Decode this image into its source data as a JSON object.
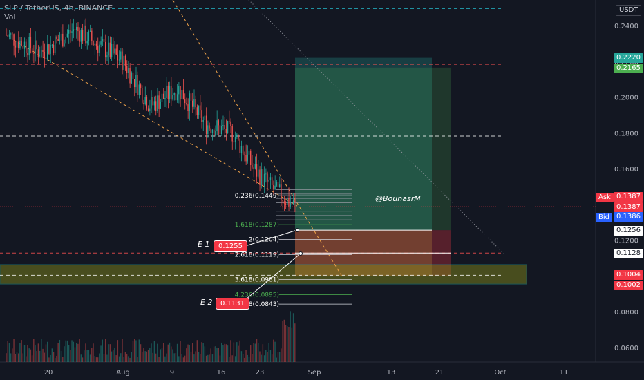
{
  "header": {
    "symbol": "SLP / TetherUS, 4h, BINANCE",
    "volume_label": "Vol"
  },
  "currency": "USDT",
  "watermark": "@BounasrM",
  "entries": [
    {
      "label": "E 1",
      "price": "0.1255"
    },
    {
      "label": "E 2",
      "price": "0.1131"
    }
  ],
  "ask_label": "Ask",
  "bid_label": "Bid",
  "price_tags": [
    {
      "text": "0.2220",
      "color": "#26a69a"
    },
    {
      "text": "0.2165",
      "color": "#4caf50"
    },
    {
      "text": "0.1387",
      "color": "#f23645"
    },
    {
      "text": "0.1387",
      "color": "#f23645"
    },
    {
      "text": "0.1386",
      "color": "#2962ff"
    },
    {
      "text": "0.1256",
      "color": "#ffffff"
    },
    {
      "text": "0.1128",
      "color": "#ffffff"
    },
    {
      "text": "0.1004",
      "color": "#f23645"
    },
    {
      "text": "0.1002",
      "color": "#f23645"
    }
  ],
  "fib_labels": [
    {
      "text": "0.236(0.1449)",
      "value": 0.1449,
      "color": "#ffffff"
    },
    {
      "text": "1.618(0.1287)",
      "value": 0.1287,
      "color": "#4caf50"
    },
    {
      "text": "2(0.1204)",
      "value": 0.1204,
      "color": "#ffffff"
    },
    {
      "text": "2.618(0.1119)",
      "value": 0.1119,
      "color": "#ffffff"
    },
    {
      "text": "3.618(0.0981)",
      "value": 0.0981,
      "color": "#ffffff"
    },
    {
      "text": "4.236(0.0895)",
      "value": 0.0895,
      "color": "#4caf50"
    },
    {
      "text": "4.618(0.0843)",
      "value": 0.0843,
      "color": "#ffffff"
    }
  ],
  "chart_data": {
    "type": "candlestick",
    "title": "SLP / TetherUS, 4h, BINANCE",
    "y_axis_ticks": [
      0.24,
      0.22,
      0.2,
      0.18,
      0.16,
      0.14,
      0.12,
      0.1,
      0.08,
      0.06
    ],
    "y_axis_tick_labels": [
      "0.2400",
      "0.2200",
      "0.2000",
      "0.1800",
      "0.1600",
      "0.1400",
      "0.1200",
      "0.1000",
      "0.0800",
      "0.0600"
    ],
    "x_axis_tick_labels": [
      "20",
      "Aug",
      "9",
      "16",
      "23",
      "Sep",
      "13",
      "21",
      "Oct",
      "11"
    ],
    "ylim": [
      0.052,
      0.246
    ],
    "price_series_approx": [
      {
        "date": "2021-07-15",
        "close": 0.235
      },
      {
        "date": "2021-07-20",
        "close": 0.225
      },
      {
        "date": "2021-07-25",
        "close": 0.238
      },
      {
        "date": "2021-08-01",
        "close": 0.22
      },
      {
        "date": "2021-08-05",
        "close": 0.195
      },
      {
        "date": "2021-08-09",
        "close": 0.205
      },
      {
        "date": "2021-08-13",
        "close": 0.185
      },
      {
        "date": "2021-08-17",
        "close": 0.18
      },
      {
        "date": "2021-08-20",
        "close": 0.16
      },
      {
        "date": "2021-08-23",
        "close": 0.148
      },
      {
        "date": "2021-08-26",
        "close": 0.139
      }
    ],
    "horizontal_levels": [
      0.2495,
      0.2183,
      0.1782,
      0.1128,
      0.1004
    ],
    "long_position": {
      "entry": 0.1256,
      "target_1": 0.222,
      "target_2": 0.2165,
      "stop": 0.1002
    },
    "support_zone": [
      0.0955,
      0.1064
    ],
    "current_price": 0.1387
  }
}
